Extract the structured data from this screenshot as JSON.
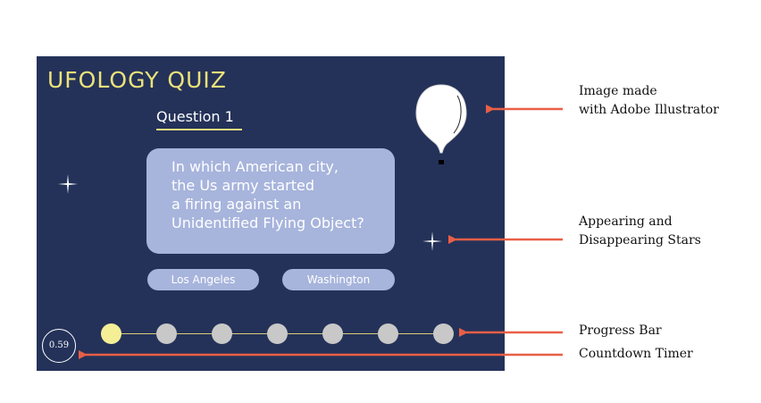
{
  "quiz": {
    "title": "UFOLOGY QUIZ",
    "question_label": "Question 1",
    "question_text": "In which American city,\nthe Us army started\na firing against an\nUnidentified Flying Object?",
    "answers": [
      "Los Angeles",
      "Washington"
    ],
    "timer": "0.59",
    "progress": {
      "total": 7,
      "current": 1
    }
  },
  "annotations": {
    "image": "Image made\nwith Adobe Illustrator",
    "stars": "Appearing and\nDisappearing Stars",
    "progress_bar": "Progress Bar",
    "timer": "Countdown Timer"
  },
  "colors": {
    "background": "#243259",
    "accent": "#ece27a",
    "card": "#a7b4dc",
    "arrow": "#e95f46",
    "inactive_dot": "#c8c8c8",
    "active_dot": "#f4ef96"
  },
  "icons": [
    "balloon-illustration",
    "sparkle-star-icon",
    "sparkle-star-icon"
  ]
}
